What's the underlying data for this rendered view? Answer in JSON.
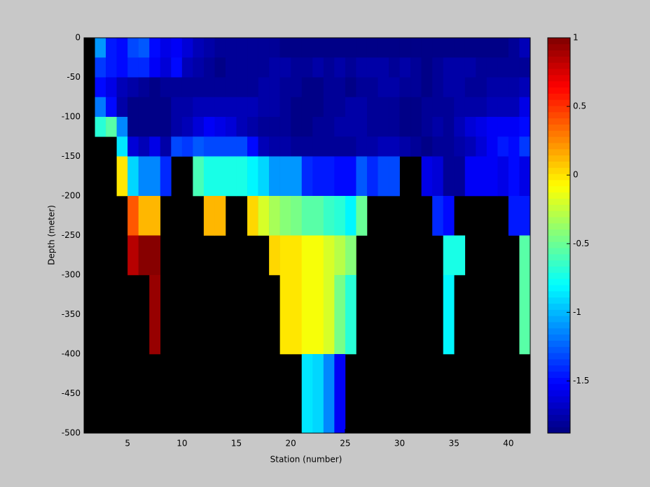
{
  "chart_data": {
    "type": "heatmap",
    "xlabel": "Station (number)",
    "ylabel": "Depth (meter)",
    "xlim": [
      1,
      42
    ],
    "ylim": [
      -500,
      0
    ],
    "xticks": [
      5,
      10,
      15,
      20,
      25,
      30,
      35,
      40
    ],
    "yticks": [
      0,
      -50,
      -100,
      -150,
      -200,
      -250,
      -300,
      -350,
      -400,
      -450,
      -500
    ],
    "x_edges": [
      2,
      3,
      4,
      5,
      6,
      7,
      8,
      9,
      10,
      11,
      12,
      13,
      14,
      15,
      16,
      17,
      18,
      19,
      20,
      21,
      22,
      23,
      24,
      25,
      26,
      27,
      28,
      29,
      30,
      31,
      32,
      33,
      34,
      35,
      36,
      37,
      38,
      39,
      40,
      41,
      42
    ],
    "y_edges": [
      0,
      -25,
      -50,
      -75,
      -100,
      -125,
      -150,
      -200,
      -250,
      -300,
      -400,
      -500
    ],
    "values": [
      [
        -1.1,
        -1.45,
        -1.5,
        -1.3,
        -1.25,
        -1.5,
        -1.6,
        -1.55,
        -1.65,
        -1.7,
        -1.75,
        -1.8,
        -1.8,
        -1.8,
        -1.8,
        -1.8,
        -1.8,
        -1.85,
        -1.85,
        -1.85,
        -1.85,
        -1.85,
        -1.85,
        -1.85,
        -1.85,
        -1.85,
        -1.85,
        -1.85,
        -1.85,
        -1.85,
        -1.85,
        -1.85,
        -1.85,
        -1.85,
        -1.85,
        -1.85,
        -1.85,
        -1.85,
        -1.8,
        -1.7
      ],
      [
        -1.35,
        -1.45,
        -1.5,
        -1.4,
        -1.4,
        -1.55,
        -1.65,
        -1.5,
        -1.7,
        -1.75,
        -1.8,
        -1.85,
        -1.8,
        -1.8,
        -1.8,
        -1.8,
        -1.75,
        -1.75,
        -1.8,
        -1.8,
        -1.75,
        -1.8,
        -1.75,
        -1.8,
        -1.75,
        -1.75,
        -1.75,
        -1.8,
        -1.75,
        -1.8,
        -1.85,
        -1.8,
        -1.75,
        -1.75,
        -1.75,
        -1.8,
        -1.8,
        -1.8,
        -1.8,
        -1.8
      ],
      [
        -1.5,
        -1.6,
        -1.7,
        -1.75,
        -1.8,
        -1.85,
        -1.8,
        -1.8,
        -1.8,
        -1.8,
        -1.8,
        -1.8,
        -1.8,
        -1.8,
        -1.8,
        -1.75,
        -1.75,
        -1.8,
        -1.8,
        -1.85,
        -1.85,
        -1.8,
        -1.8,
        -1.85,
        -1.8,
        -1.8,
        -1.75,
        -1.75,
        -1.8,
        -1.8,
        -1.85,
        -1.8,
        -1.75,
        -1.75,
        -1.8,
        -1.8,
        -1.75,
        -1.75,
        -1.75,
        -1.7
      ],
      [
        -1.2,
        -1.5,
        -1.75,
        -1.85,
        -1.9,
        -1.9,
        -1.85,
        -1.75,
        -1.75,
        -1.7,
        -1.7,
        -1.7,
        -1.7,
        -1.7,
        -1.7,
        -1.75,
        -1.75,
        -1.8,
        -1.85,
        -1.85,
        -1.85,
        -1.8,
        -1.8,
        -1.75,
        -1.75,
        -1.8,
        -1.8,
        -1.8,
        -1.85,
        -1.85,
        -1.8,
        -1.8,
        -1.8,
        -1.75,
        -1.75,
        -1.75,
        -1.7,
        -1.7,
        -1.7,
        -1.6
      ],
      [
        -0.7,
        -0.55,
        -1.15,
        -1.85,
        -1.9,
        -1.9,
        -1.85,
        -1.75,
        -1.7,
        -1.65,
        -1.55,
        -1.6,
        -1.65,
        -1.7,
        -1.75,
        -1.8,
        -1.8,
        -1.8,
        -1.85,
        -1.85,
        -1.8,
        -1.8,
        -1.75,
        -1.75,
        -1.75,
        -1.8,
        -1.8,
        -1.8,
        -1.85,
        -1.85,
        -1.8,
        -1.75,
        -1.8,
        -1.7,
        -1.65,
        -1.6,
        -1.55,
        -1.55,
        -1.55,
        -1.5
      ],
      [
        null,
        null,
        -0.85,
        -1.65,
        -1.7,
        -1.6,
        -1.75,
        -1.3,
        -1.35,
        -1.25,
        -1.3,
        -1.3,
        -1.3,
        -1.3,
        -1.5,
        -1.7,
        -1.75,
        -1.75,
        -1.8,
        -1.8,
        -1.8,
        -1.8,
        -1.8,
        -1.8,
        -1.75,
        -1.75,
        -1.7,
        -1.7,
        -1.75,
        -1.8,
        -1.85,
        -1.8,
        -1.8,
        -1.75,
        -1.7,
        -1.65,
        -1.55,
        -1.45,
        -1.5,
        -1.35
      ],
      [
        null,
        null,
        0.0,
        -0.9,
        -1.15,
        -1.15,
        -1.4,
        null,
        null,
        -0.6,
        -0.75,
        -0.75,
        -0.75,
        -0.75,
        -0.8,
        -0.9,
        -1.1,
        -1.1,
        -1.1,
        -1.4,
        -1.45,
        -1.45,
        -1.5,
        -1.5,
        -1.25,
        -1.4,
        -1.3,
        -1.3,
        null,
        null,
        -1.6,
        -1.65,
        -1.8,
        -1.8,
        -1.55,
        -1.55,
        -1.55,
        -1.6,
        -1.5,
        -1.6
      ],
      [
        null,
        null,
        null,
        0.4,
        0.1,
        0.1,
        null,
        null,
        null,
        null,
        0.1,
        0.1,
        null,
        null,
        0.05,
        -0.2,
        -0.35,
        -0.4,
        -0.45,
        -0.55,
        -0.55,
        -0.65,
        -0.7,
        -0.8,
        -0.5,
        null,
        null,
        null,
        null,
        null,
        null,
        -1.4,
        -1.5,
        null,
        null,
        null,
        null,
        null,
        -1.45,
        -1.45
      ],
      [
        null,
        null,
        null,
        0.85,
        1.0,
        1.0,
        null,
        null,
        null,
        null,
        null,
        null,
        null,
        null,
        null,
        null,
        0.05,
        0.0,
        0.0,
        -0.1,
        -0.1,
        -0.2,
        -0.3,
        -0.4,
        null,
        null,
        null,
        null,
        null,
        null,
        null,
        null,
        -0.75,
        -0.75,
        null,
        null,
        null,
        null,
        null,
        -0.55
      ],
      [
        null,
        null,
        null,
        null,
        null,
        0.95,
        null,
        null,
        null,
        null,
        null,
        null,
        null,
        null,
        null,
        null,
        null,
        0.0,
        0.0,
        -0.1,
        -0.1,
        -0.2,
        -0.45,
        -0.7,
        null,
        null,
        null,
        null,
        null,
        null,
        null,
        null,
        -0.8,
        null,
        null,
        null,
        null,
        null,
        null,
        -0.55
      ],
      [
        null,
        null,
        null,
        null,
        null,
        null,
        null,
        null,
        null,
        null,
        null,
        null,
        null,
        null,
        null,
        null,
        null,
        null,
        null,
        -0.85,
        -0.9,
        -1.15,
        -1.55,
        null,
        null,
        null,
        null,
        null,
        null,
        null,
        null,
        null,
        null,
        null,
        null,
        null,
        null,
        null,
        null,
        null
      ]
    ],
    "clim": [
      -1.88,
      1
    ],
    "cticks": [
      1,
      0.5,
      0,
      -0.5,
      -1,
      -1.5
    ]
  }
}
